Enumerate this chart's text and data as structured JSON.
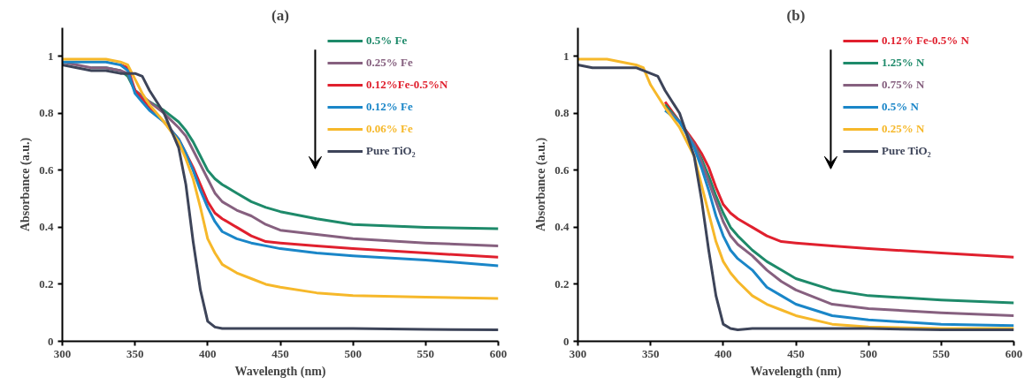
{
  "chart_data": [
    {
      "type": "line",
      "title": "(a)",
      "xlabel": "Wavelength (nm)",
      "ylabel": "Absorbance (a.u.)",
      "x": [
        300,
        310,
        320,
        330,
        340,
        345,
        350,
        355,
        360,
        370,
        380,
        385,
        390,
        395,
        400,
        405,
        410,
        420,
        430,
        440,
        450,
        475,
        500,
        550,
        600
      ],
      "xlim": [
        300,
        600
      ],
      "xticks": [
        300,
        350,
        400,
        450,
        500,
        550,
        600
      ],
      "ylim": [
        0,
        1.1
      ],
      "yticks": [
        0,
        0.2,
        0.4,
        0.6,
        0.8,
        1
      ],
      "grid": false,
      "legend": "top right",
      "marker": "none",
      "line_style": "solid",
      "series": [
        {
          "name": "0.5% Fe",
          "color": "#1e8a6a",
          "values": [
            null,
            null,
            0.96,
            0.96,
            0.95,
            0.93,
            0.88,
            0.86,
            0.84,
            0.81,
            0.77,
            0.74,
            0.7,
            0.65,
            0.6,
            0.57,
            0.55,
            0.52,
            0.49,
            0.47,
            0.455,
            0.43,
            0.41,
            0.4,
            0.395
          ]
        },
        {
          "name": "0.25% Fe",
          "color": "#86607f",
          "values": [
            0.98,
            0.97,
            0.96,
            0.96,
            0.95,
            0.94,
            0.88,
            0.86,
            0.84,
            0.8,
            0.75,
            0.72,
            0.67,
            0.62,
            0.57,
            0.52,
            0.49,
            0.46,
            0.44,
            0.41,
            0.39,
            0.375,
            0.36,
            0.345,
            0.335
          ]
        },
        {
          "name": "0.12%Fe-0.5%N",
          "color": "#e0202e",
          "values": [
            null,
            null,
            null,
            null,
            0.97,
            0.96,
            0.88,
            0.85,
            0.82,
            0.77,
            0.71,
            0.66,
            0.61,
            0.55,
            0.49,
            0.45,
            0.43,
            0.4,
            0.37,
            0.35,
            0.345,
            0.335,
            0.325,
            0.31,
            0.295
          ]
        },
        {
          "name": "0.12% Fe",
          "color": "#1a86c8",
          "values": [
            0.98,
            0.98,
            0.98,
            0.98,
            0.97,
            0.95,
            0.87,
            0.84,
            0.81,
            0.77,
            0.71,
            0.66,
            0.6,
            0.53,
            0.47,
            0.42,
            0.385,
            0.36,
            0.345,
            0.335,
            0.325,
            0.31,
            0.3,
            0.285,
            0.265
          ]
        },
        {
          "name": "0.06% Fe",
          "color": "#f6b82a",
          "values": [
            0.99,
            0.99,
            0.99,
            0.99,
            0.98,
            0.97,
            0.92,
            0.87,
            0.83,
            0.77,
            0.7,
            0.64,
            0.57,
            0.47,
            0.36,
            0.31,
            0.27,
            0.24,
            0.22,
            0.2,
            0.19,
            0.17,
            0.16,
            0.155,
            0.15
          ]
        },
        {
          "name": "Pure TiO₂",
          "color": "#3d4459",
          "values": [
            0.97,
            0.96,
            0.95,
            0.95,
            0.94,
            0.94,
            0.94,
            0.93,
            0.88,
            0.8,
            0.68,
            0.55,
            0.35,
            0.18,
            0.07,
            0.05,
            0.045,
            0.045,
            0.045,
            0.045,
            0.045,
            0.045,
            0.045,
            0.042,
            0.04
          ]
        }
      ]
    },
    {
      "type": "line",
      "title": "(b)",
      "xlabel": "Wavelength (nm)",
      "ylabel": "Absorbance (a.u.)",
      "x": [
        300,
        310,
        320,
        330,
        340,
        345,
        350,
        355,
        360,
        370,
        380,
        385,
        390,
        395,
        400,
        405,
        410,
        420,
        430,
        440,
        450,
        475,
        500,
        550,
        600
      ],
      "xlim": [
        300,
        600
      ],
      "xticks": [
        300,
        350,
        400,
        450,
        500,
        550,
        600
      ],
      "ylim": [
        0,
        1.1
      ],
      "yticks": [
        0,
        0.2,
        0.4,
        0.6,
        0.8,
        1
      ],
      "grid": false,
      "legend": "top right",
      "marker": "none",
      "line_style": "solid",
      "series": [
        {
          "name": "0.12% Fe-0.5% N",
          "color": "#e0202e",
          "values": [
            null,
            null,
            null,
            null,
            null,
            null,
            null,
            null,
            0.84,
            0.77,
            0.7,
            0.66,
            0.61,
            0.54,
            0.48,
            0.45,
            0.43,
            0.4,
            0.37,
            0.35,
            0.345,
            0.335,
            0.325,
            0.31,
            0.295
          ]
        },
        {
          "name": "1.25% N",
          "color": "#1e8a6a",
          "values": [
            null,
            null,
            null,
            null,
            null,
            null,
            null,
            null,
            0.83,
            0.77,
            0.69,
            0.64,
            0.58,
            0.51,
            0.45,
            0.4,
            0.37,
            0.32,
            0.28,
            0.25,
            0.22,
            0.18,
            0.16,
            0.145,
            0.135
          ]
        },
        {
          "name": "0.75% N",
          "color": "#86607f",
          "values": [
            null,
            null,
            null,
            null,
            null,
            null,
            null,
            null,
            0.82,
            0.77,
            0.69,
            0.63,
            0.56,
            0.49,
            0.42,
            0.37,
            0.34,
            0.3,
            0.25,
            0.21,
            0.18,
            0.13,
            0.115,
            0.1,
            0.09
          ]
        },
        {
          "name": "0.5% N",
          "color": "#1a86c8",
          "values": [
            null,
            null,
            null,
            null,
            null,
            null,
            null,
            null,
            0.81,
            0.77,
            0.68,
            0.61,
            0.53,
            0.44,
            0.37,
            0.32,
            0.29,
            0.25,
            0.19,
            0.16,
            0.13,
            0.09,
            0.075,
            0.06,
            0.055
          ]
        },
        {
          "name": "0.25% N",
          "color": "#f6b82a",
          "values": [
            0.99,
            0.99,
            0.99,
            0.98,
            0.97,
            0.96,
            0.9,
            0.86,
            0.82,
            0.75,
            0.65,
            0.55,
            0.45,
            0.35,
            0.28,
            0.24,
            0.21,
            0.16,
            0.13,
            0.11,
            0.09,
            0.06,
            0.05,
            0.045,
            0.045
          ]
        },
        {
          "name": "Pure TiO₂",
          "color": "#3d4459",
          "values": [
            0.97,
            0.96,
            0.96,
            0.96,
            0.96,
            0.95,
            0.94,
            0.93,
            0.88,
            0.8,
            0.65,
            0.5,
            0.32,
            0.16,
            0.06,
            0.045,
            0.04,
            0.045,
            0.045,
            0.045,
            0.045,
            0.045,
            0.045,
            0.04,
            0.04
          ]
        }
      ]
    }
  ]
}
